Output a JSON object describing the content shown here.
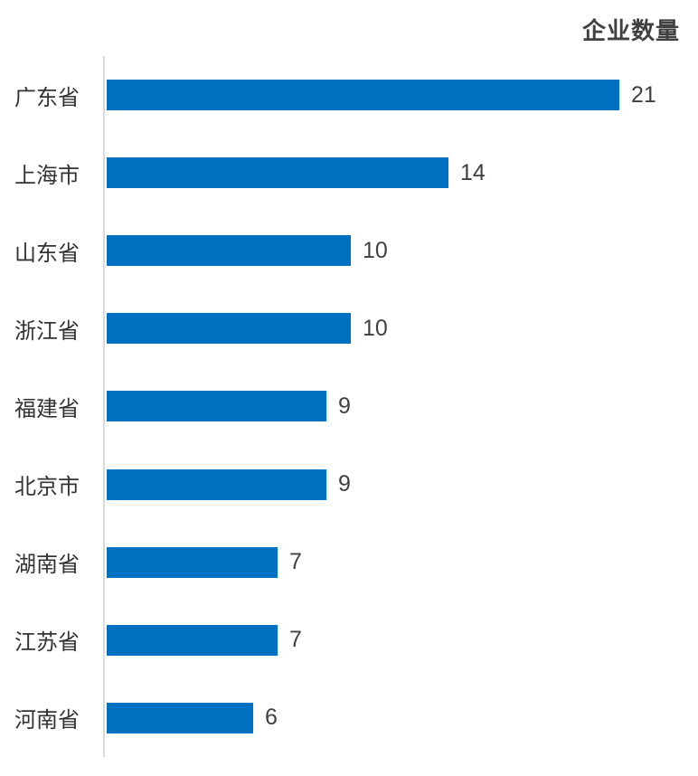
{
  "chart_data": {
    "type": "bar",
    "orientation": "horizontal",
    "title": "企业数量",
    "categories": [
      "广东省",
      "上海市",
      "山东省",
      "浙江省",
      "福建省",
      "北京市",
      "湖南省",
      "江苏省",
      "河南省"
    ],
    "values": [
      21,
      14,
      10,
      10,
      9,
      9,
      7,
      7,
      6
    ],
    "xlabel": "",
    "ylabel": "",
    "xlim": [
      0,
      21
    ],
    "grid": false,
    "legend": "none",
    "value_labels_shown": true,
    "bar_color": "#0070C0",
    "axis_line_color": "#D9D9D9",
    "text_color": "#404040"
  }
}
